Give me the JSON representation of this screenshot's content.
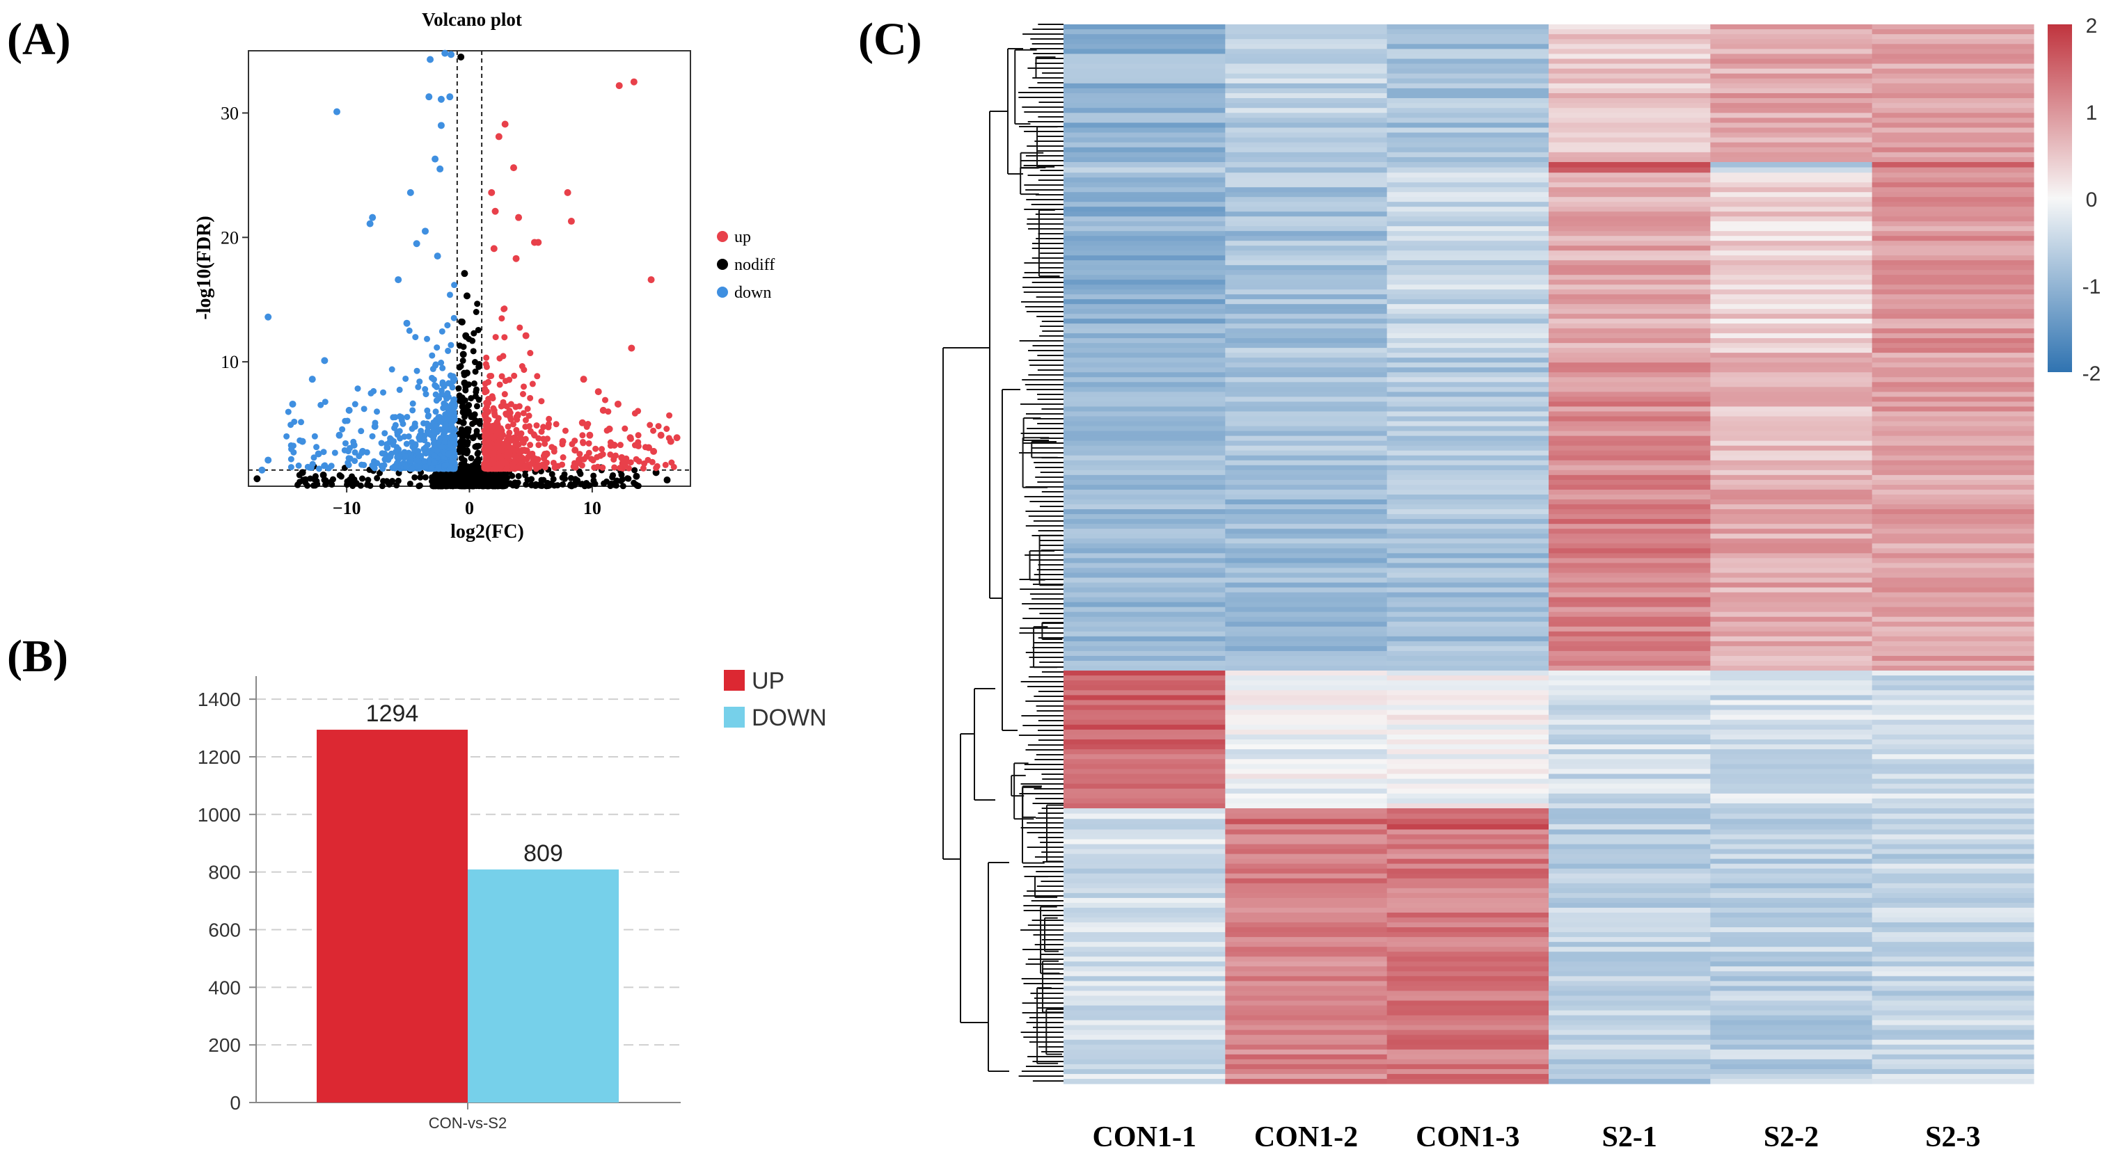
{
  "panels": {
    "a_label": "(A)",
    "b_label": "(B)",
    "c_label": "(C)"
  },
  "colors": {
    "up": "#e8404a",
    "down": "#3f8fe0",
    "nodiff": "#000000",
    "bar_up": "#dc2832",
    "bar_down": "#76d0ea",
    "heat_high": "#c0343e",
    "heat_mid": "#f7f7f7",
    "heat_low": "#2f73b1"
  },
  "chart_data": [
    {
      "type": "scatter",
      "title": "Volcano plot",
      "xlabel": "log2(FC)",
      "ylabel": "-log10(FDR)",
      "xlim": [
        -18,
        18
      ],
      "ylim": [
        0,
        35
      ],
      "xticks": [
        -10,
        0,
        10
      ],
      "yticks": [
        10,
        20,
        30
      ],
      "thresholds": {
        "x": [
          -1,
          1
        ],
        "y": 1.3
      },
      "legend": [
        "up",
        "nodiff",
        "down"
      ],
      "legend_position": "right",
      "series": [
        {
          "name": "up",
          "points": [
            [
              12.2,
              32.2
            ],
            [
              13.4,
              32.5
            ],
            [
              2.9,
              29.1
            ],
            [
              2.4,
              28.1
            ],
            [
              3.6,
              25.6
            ],
            [
              1.8,
              23.6
            ],
            [
              8.0,
              23.6
            ],
            [
              2.1,
              22.1
            ],
            [
              4.0,
              21.6
            ],
            [
              8.3,
              21.3
            ],
            [
              5.3,
              19.6
            ],
            [
              5.6,
              19.6
            ],
            [
              2.0,
              19.1
            ],
            [
              3.8,
              18.3
            ],
            [
              14.8,
              16.6
            ],
            [
              4.6,
              12.1
            ],
            [
              13.2,
              11.1
            ],
            [
              9.3,
              8.6
            ],
            [
              10.5,
              7.6
            ],
            [
              12.1,
              6.6
            ],
            [
              16.4,
              3.6
            ],
            [
              15.6,
              4.1
            ],
            [
              14.6,
              3.1
            ],
            [
              11.4,
              4.6
            ],
            [
              9.8,
              4.1
            ],
            [
              7.6,
              3.6
            ],
            [
              6.3,
              2.6
            ],
            [
              8.6,
              2.9
            ],
            [
              13.1,
              3.9
            ],
            [
              12.4,
              2.3
            ],
            [
              10.9,
              6.1
            ],
            [
              11.8,
              3.3
            ],
            [
              15.0,
              2.8
            ],
            [
              16.9,
              3.9
            ],
            [
              9.2,
              5.1
            ]
          ]
        },
        {
          "name": "down",
          "points": [
            [
              -2.0,
              34.8
            ],
            [
              -1.5,
              34.7
            ],
            [
              -3.2,
              34.3
            ],
            [
              -1.6,
              31.3
            ],
            [
              -2.3,
              31.1
            ],
            [
              -3.3,
              31.3
            ],
            [
              -10.8,
              30.1
            ],
            [
              -2.3,
              29.0
            ],
            [
              -2.8,
              26.3
            ],
            [
              -2.4,
              25.5
            ],
            [
              -4.8,
              23.6
            ],
            [
              -7.9,
              21.6
            ],
            [
              -3.6,
              20.5
            ],
            [
              -4.3,
              19.5
            ],
            [
              -2.6,
              18.5
            ],
            [
              -8.1,
              21.1
            ],
            [
              -5.8,
              16.6
            ],
            [
              -16.4,
              13.6
            ],
            [
              -5.1,
              13.1
            ],
            [
              -11.8,
              10.1
            ],
            [
              -12.8,
              8.6
            ],
            [
              -14.4,
              6.6
            ],
            [
              -16.4,
              2.1
            ],
            [
              -16.9,
              1.3
            ],
            [
              -9.8,
              6.1
            ],
            [
              -7.7,
              4.8
            ],
            [
              -9.4,
              3.3
            ],
            [
              -12.3,
              2.6
            ],
            [
              -10.6,
              4.1
            ],
            [
              -6.7,
              3.1
            ],
            [
              -8.7,
              2.8
            ],
            [
              -13.6,
              3.6
            ]
          ]
        },
        {
          "name": "nodiff",
          "points": [
            [
              -0.7,
              34.5
            ],
            [
              -0.4,
              17.1
            ],
            [
              -0.2,
              15.3
            ],
            [
              -0.6,
              13.2
            ],
            [
              -0.3,
              12.1
            ],
            [
              -0.5,
              10.6
            ],
            [
              -0.2,
              9.1
            ],
            [
              -0.4,
              8.3
            ],
            [
              -0.6,
              7.1
            ],
            [
              -0.3,
              6.2
            ],
            [
              -0.5,
              5.1
            ],
            [
              -0.2,
              4.3
            ],
            [
              0.3,
              3.9
            ],
            [
              0.6,
              3.2
            ],
            [
              -13.6,
              1.1
            ],
            [
              -11.9,
              0.9
            ],
            [
              -17.3,
              0.6
            ],
            [
              16.1,
              0.5
            ],
            [
              15.2,
              1.1
            ],
            [
              13.6,
              0.8
            ]
          ]
        }
      ]
    },
    {
      "type": "bar",
      "categories": [
        "CON-vs-S2"
      ],
      "series": [
        {
          "name": "UP",
          "values": [
            1294
          ]
        },
        {
          "name": "DOWN",
          "values": [
            809
          ]
        }
      ],
      "data_labels": [
        "1294",
        "809"
      ],
      "ylim": [
        0,
        1480
      ],
      "yticks": [
        0,
        200,
        400,
        600,
        800,
        1000,
        1200,
        1400
      ],
      "grid": true,
      "legend": [
        "UP",
        "DOWN"
      ],
      "legend_position": "right",
      "xlabel": "",
      "ylabel": ""
    },
    {
      "type": "heatmap",
      "columns": [
        "CON1-1",
        "CON1-2",
        "CON1-3",
        "S2-1",
        "S2-2",
        "S2-3"
      ],
      "colorbar": {
        "min": -2,
        "max": 2,
        "ticks": [
          "2",
          "1",
          "0",
          "-1",
          "-2"
        ]
      },
      "dendrogram": "rows",
      "blocks": [
        {
          "rows_fraction": 0.13,
          "values": [
            -1.0,
            -0.6,
            -0.8,
            0.5,
            0.8,
            0.9
          ]
        },
        {
          "rows_fraction": 0.01,
          "values": [
            -0.7,
            -0.6,
            -0.7,
            1.6,
            -0.5,
            1.4
          ]
        },
        {
          "rows_fraction": 0.17,
          "values": [
            -1.1,
            -0.8,
            -0.5,
            0.8,
            0.4,
            1.0
          ]
        },
        {
          "rows_fraction": 0.12,
          "values": [
            -0.9,
            -0.8,
            -0.7,
            1.1,
            0.6,
            0.9
          ]
        },
        {
          "rows_fraction": 0.18,
          "values": [
            -0.9,
            -0.9,
            -0.8,
            1.2,
            0.8,
            0.9
          ]
        },
        {
          "rows_fraction": 0.13,
          "values": [
            1.5,
            -0.1,
            0.0,
            -0.4,
            -0.4,
            -0.4
          ]
        },
        {
          "rows_fraction": 0.02,
          "values": [
            -0.3,
            1.4,
            1.6,
            -0.6,
            -0.6,
            -0.5
          ]
        },
        {
          "rows_fraction": 0.24,
          "values": [
            -0.4,
            1.2,
            1.3,
            -0.6,
            -0.6,
            -0.5
          ]
        }
      ]
    }
  ]
}
